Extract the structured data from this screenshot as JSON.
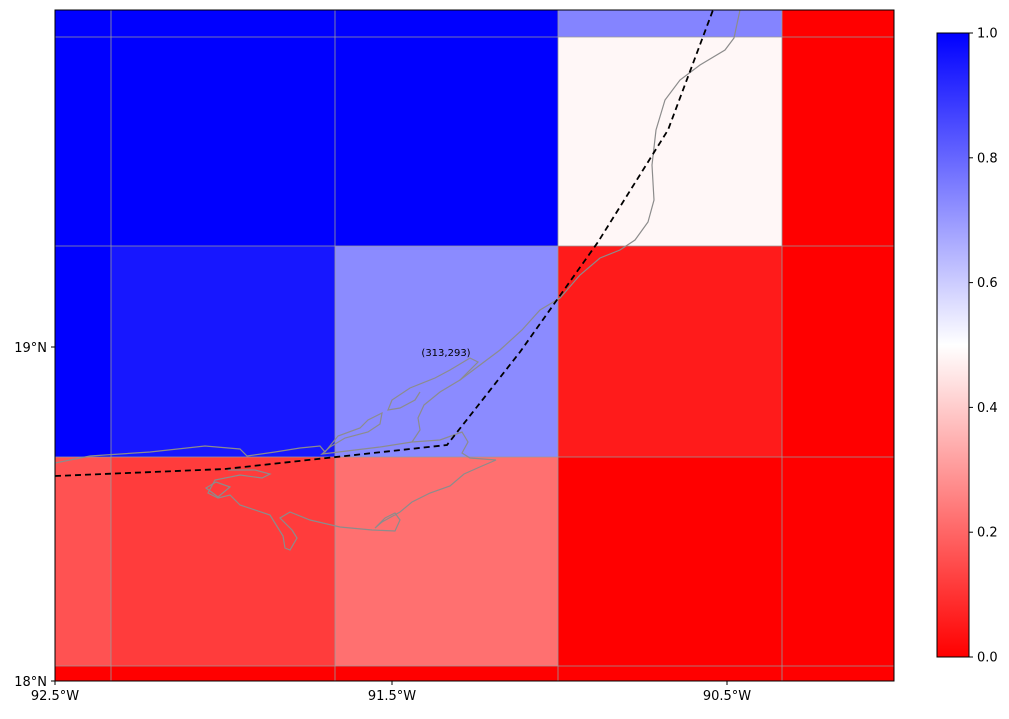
{
  "map": {
    "x_ticks": [
      {
        "label": "92.5°W",
        "lon": -92.5
      },
      {
        "label": "91.5°W",
        "lon": -91.5
      },
      {
        "label": "90.5°W",
        "lon": -90.5
      }
    ],
    "y_ticks": [
      {
        "label": "19°N",
        "lat": 19.0
      },
      {
        "label": "18°N",
        "lat": 18.0
      }
    ],
    "point_label": "(313,293)",
    "colorbar": {
      "min": 0.0,
      "max": 1.0,
      "ticks": [
        "0.0",
        "0.2",
        "0.4",
        "0.6",
        "0.8",
        "1.0"
      ],
      "colors": {
        "low": "#ff0000",
        "mid": "#ffffff",
        "high": "#0000ff"
      }
    },
    "colors": {
      "cell_border": "#9a9a9a",
      "coastline": "#8c8c8c",
      "track": "#000000"
    }
  }
}
